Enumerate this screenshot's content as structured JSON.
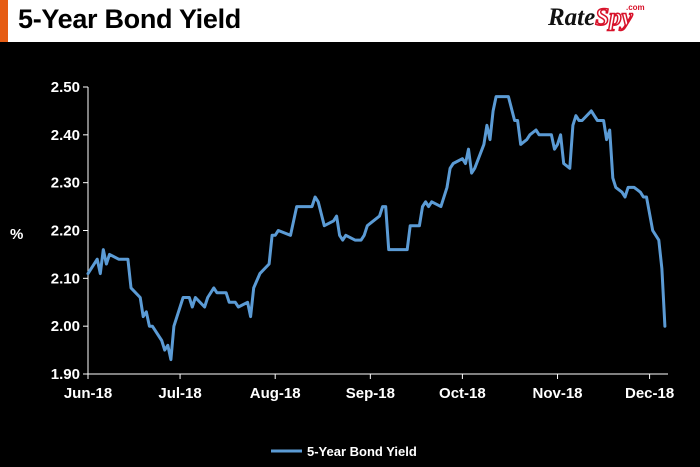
{
  "header": {
    "title": "5-Year Bond Yield",
    "accent_color": "#e65d14",
    "logo": {
      "part1": "Rate",
      "part2": "Spy",
      "suffix": ".com"
    }
  },
  "chart_data": {
    "type": "line",
    "title": "5-Year Bond Yield",
    "ylabel": "%",
    "xlabel": "",
    "ylim": [
      1.9,
      2.5
    ],
    "yticks": [
      1.9,
      2.0,
      2.1,
      2.2,
      2.3,
      2.4,
      2.5
    ],
    "ytick_labels": [
      "1.90",
      "2.00",
      "2.10",
      "2.20",
      "2.30",
      "2.40",
      "2.50"
    ],
    "xlim": [
      "2018-06-01",
      "2018-12-07"
    ],
    "xticks": [
      "2018-06-01",
      "2018-07-01",
      "2018-08-01",
      "2018-09-01",
      "2018-10-01",
      "2018-11-01",
      "2018-12-01"
    ],
    "xtick_labels": [
      "Jun-18",
      "Jul-18",
      "Aug-18",
      "Sep-18",
      "Oct-18",
      "Nov-18",
      "Dec-18"
    ],
    "grid": false,
    "legend": "bottom-center",
    "line_color": "#5b9bd5",
    "series": [
      {
        "name": "5-Year Bond Yield",
        "points": [
          [
            "2018-06-01",
            2.11
          ],
          [
            "2018-06-04",
            2.14
          ],
          [
            "2018-06-05",
            2.11
          ],
          [
            "2018-06-06",
            2.16
          ],
          [
            "2018-06-07",
            2.13
          ],
          [
            "2018-06-08",
            2.15
          ],
          [
            "2018-06-11",
            2.14
          ],
          [
            "2018-06-14",
            2.14
          ],
          [
            "2018-06-15",
            2.08
          ],
          [
            "2018-06-18",
            2.06
          ],
          [
            "2018-06-19",
            2.02
          ],
          [
            "2018-06-20",
            2.03
          ],
          [
            "2018-06-21",
            2.0
          ],
          [
            "2018-06-22",
            2.0
          ],
          [
            "2018-06-25",
            1.97
          ],
          [
            "2018-06-26",
            1.95
          ],
          [
            "2018-06-27",
            1.96
          ],
          [
            "2018-06-28",
            1.93
          ],
          [
            "2018-06-29",
            2.0
          ],
          [
            "2018-07-02",
            2.06
          ],
          [
            "2018-07-04",
            2.06
          ],
          [
            "2018-07-05",
            2.04
          ],
          [
            "2018-07-06",
            2.06
          ],
          [
            "2018-07-09",
            2.04
          ],
          [
            "2018-07-10",
            2.06
          ],
          [
            "2018-07-12",
            2.08
          ],
          [
            "2018-07-13",
            2.07
          ],
          [
            "2018-07-16",
            2.07
          ],
          [
            "2018-07-17",
            2.05
          ],
          [
            "2018-07-19",
            2.05
          ],
          [
            "2018-07-20",
            2.04
          ],
          [
            "2018-07-23",
            2.05
          ],
          [
            "2018-07-24",
            2.02
          ],
          [
            "2018-07-25",
            2.08
          ],
          [
            "2018-07-27",
            2.11
          ],
          [
            "2018-07-30",
            2.13
          ],
          [
            "2018-07-31",
            2.19
          ],
          [
            "2018-08-01",
            2.19
          ],
          [
            "2018-08-02",
            2.2
          ],
          [
            "2018-08-06",
            2.19
          ],
          [
            "2018-08-07",
            2.22
          ],
          [
            "2018-08-08",
            2.25
          ],
          [
            "2018-08-13",
            2.25
          ],
          [
            "2018-08-14",
            2.27
          ],
          [
            "2018-08-15",
            2.26
          ],
          [
            "2018-08-17",
            2.21
          ],
          [
            "2018-08-20",
            2.22
          ],
          [
            "2018-08-21",
            2.23
          ],
          [
            "2018-08-22",
            2.19
          ],
          [
            "2018-08-23",
            2.18
          ],
          [
            "2018-08-24",
            2.19
          ],
          [
            "2018-08-27",
            2.18
          ],
          [
            "2018-08-29",
            2.18
          ],
          [
            "2018-08-30",
            2.19
          ],
          [
            "2018-08-31",
            2.21
          ],
          [
            "2018-09-04",
            2.23
          ],
          [
            "2018-09-05",
            2.25
          ],
          [
            "2018-09-06",
            2.25
          ],
          [
            "2018-09-07",
            2.16
          ],
          [
            "2018-09-13",
            2.16
          ],
          [
            "2018-09-14",
            2.21
          ],
          [
            "2018-09-17",
            2.21
          ],
          [
            "2018-09-18",
            2.25
          ],
          [
            "2018-09-19",
            2.26
          ],
          [
            "2018-09-20",
            2.25
          ],
          [
            "2018-09-21",
            2.26
          ],
          [
            "2018-09-24",
            2.25
          ],
          [
            "2018-09-26",
            2.29
          ],
          [
            "2018-09-27",
            2.33
          ],
          [
            "2018-09-28",
            2.34
          ],
          [
            "2018-10-01",
            2.35
          ],
          [
            "2018-10-02",
            2.34
          ],
          [
            "2018-10-03",
            2.37
          ],
          [
            "2018-10-04",
            2.32
          ],
          [
            "2018-10-05",
            2.33
          ],
          [
            "2018-10-08",
            2.38
          ],
          [
            "2018-10-09",
            2.42
          ],
          [
            "2018-10-10",
            2.39
          ],
          [
            "2018-10-11",
            2.45
          ],
          [
            "2018-10-12",
            2.48
          ],
          [
            "2018-10-16",
            2.48
          ],
          [
            "2018-10-18",
            2.43
          ],
          [
            "2018-10-19",
            2.43
          ],
          [
            "2018-10-20",
            2.38
          ],
          [
            "2018-10-22",
            2.39
          ],
          [
            "2018-10-23",
            2.4
          ],
          [
            "2018-10-25",
            2.41
          ],
          [
            "2018-10-26",
            2.4
          ],
          [
            "2018-10-30",
            2.4
          ],
          [
            "2018-10-31",
            2.37
          ],
          [
            "2018-11-01",
            2.38
          ],
          [
            "2018-11-02",
            2.4
          ],
          [
            "2018-11-03",
            2.34
          ],
          [
            "2018-11-05",
            2.33
          ],
          [
            "2018-11-06",
            2.42
          ],
          [
            "2018-11-07",
            2.44
          ],
          [
            "2018-11-08",
            2.43
          ],
          [
            "2018-11-09",
            2.43
          ],
          [
            "2018-11-12",
            2.45
          ],
          [
            "2018-11-13",
            2.44
          ],
          [
            "2018-11-14",
            2.43
          ],
          [
            "2018-11-16",
            2.43
          ],
          [
            "2018-11-17",
            2.39
          ],
          [
            "2018-11-18",
            2.41
          ],
          [
            "2018-11-19",
            2.31
          ],
          [
            "2018-11-20",
            2.29
          ],
          [
            "2018-11-22",
            2.28
          ],
          [
            "2018-11-23",
            2.27
          ],
          [
            "2018-11-24",
            2.29
          ],
          [
            "2018-11-26",
            2.29
          ],
          [
            "2018-11-28",
            2.28
          ],
          [
            "2018-11-29",
            2.27
          ],
          [
            "2018-11-30",
            2.27
          ],
          [
            "2018-12-02",
            2.2
          ],
          [
            "2018-12-04",
            2.18
          ],
          [
            "2018-12-05",
            2.12
          ],
          [
            "2018-12-06",
            2.0
          ]
        ]
      }
    ]
  }
}
